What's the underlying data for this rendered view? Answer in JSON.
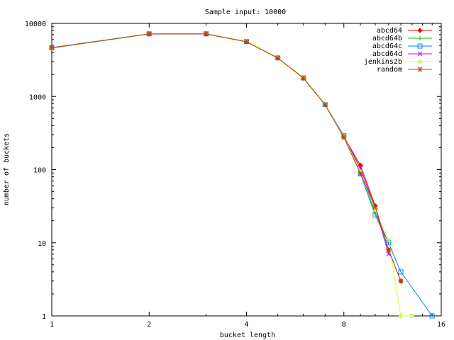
{
  "chart_data": {
    "type": "line",
    "title": "Sample input: 10000",
    "xlabel": "bucket length",
    "ylabel": "number of buckets",
    "x_scale": "log2",
    "y_scale": "log10",
    "xlim": [
      1,
      16
    ],
    "ylim": [
      1,
      10000
    ],
    "x_ticks": [
      1,
      2,
      4,
      8,
      16
    ],
    "x_tick_labels": [
      "1",
      "2",
      "4",
      "8",
      "16"
    ],
    "y_ticks": [
      1,
      10,
      100,
      1000,
      10000
    ],
    "y_tick_labels": [
      "1",
      "10",
      "100",
      "1000",
      "10000"
    ],
    "legend_position": "top-right",
    "series": [
      {
        "name": "abcd64",
        "color": "#ff0000",
        "marker": "diamond",
        "points": [
          [
            1,
            4600
          ],
          [
            2,
            7150
          ],
          [
            3,
            7150
          ],
          [
            4,
            5600
          ],
          [
            5,
            3350
          ],
          [
            6,
            1780
          ],
          [
            7,
            770
          ],
          [
            8,
            280
          ],
          [
            9,
            115
          ],
          [
            10,
            32
          ],
          [
            11,
            8
          ],
          [
            12,
            3
          ]
        ]
      },
      {
        "name": "abcd64b",
        "color": "#00c000",
        "marker": "plus",
        "points": [
          [
            1,
            4650
          ],
          [
            2,
            7200
          ],
          [
            3,
            7200
          ],
          [
            4,
            5650
          ],
          [
            5,
            3380
          ],
          [
            6,
            1800
          ],
          [
            7,
            780
          ],
          [
            8,
            290
          ],
          [
            9,
            97
          ],
          [
            10,
            26
          ],
          [
            11,
            10
          ]
        ]
      },
      {
        "name": "abcd64c",
        "color": "#0080ff",
        "marker": "square",
        "points": [
          [
            1,
            4650
          ],
          [
            2,
            7200
          ],
          [
            3,
            7200
          ],
          [
            4,
            5650
          ],
          [
            5,
            3380
          ],
          [
            6,
            1800
          ],
          [
            7,
            780
          ],
          [
            8,
            290
          ],
          [
            9,
            88
          ],
          [
            10,
            24
          ],
          [
            11,
            10
          ],
          [
            12,
            4
          ],
          [
            15,
            1
          ]
        ]
      },
      {
        "name": "abcd64d",
        "color": "#c000ff",
        "marker": "cross",
        "points": [
          [
            1,
            4620
          ],
          [
            2,
            7180
          ],
          [
            3,
            7180
          ],
          [
            4,
            5620
          ],
          [
            5,
            3360
          ],
          [
            6,
            1790
          ],
          [
            7,
            775
          ],
          [
            8,
            285
          ],
          [
            9,
            105
          ],
          [
            10,
            30
          ],
          [
            11,
            7
          ]
        ]
      },
      {
        "name": "jenkins2b",
        "color": "#c0ff40",
        "marker": "star",
        "points": [
          [
            1,
            4580
          ],
          [
            2,
            7220
          ],
          [
            3,
            7220
          ],
          [
            4,
            5700
          ],
          [
            5,
            3400
          ],
          [
            6,
            1820
          ],
          [
            7,
            785
          ],
          [
            8,
            280
          ],
          [
            9,
            95
          ],
          [
            10,
            28
          ],
          [
            11,
            11
          ],
          [
            12,
            1
          ],
          [
            13,
            1
          ]
        ]
      },
      {
        "name": "random",
        "color": "#c04000",
        "marker": "asterisk",
        "points": [
          [
            1,
            4620
          ],
          [
            2,
            7180
          ],
          [
            3,
            7180
          ],
          [
            4,
            5600
          ],
          [
            5,
            3350
          ],
          [
            6,
            1780
          ],
          [
            7,
            770
          ],
          [
            8,
            275
          ],
          [
            9,
            88
          ],
          [
            10,
            31
          ],
          [
            11,
            8
          ],
          [
            12,
            3
          ]
        ]
      }
    ]
  }
}
